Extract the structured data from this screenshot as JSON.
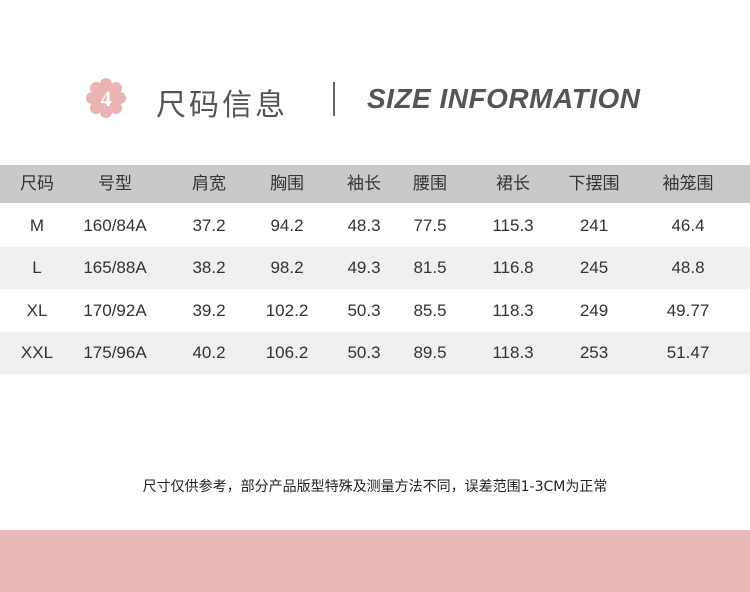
{
  "header": {
    "badge_number": "4",
    "title_cn": "尺码信息",
    "title_en": "SIZE INFORMATION"
  },
  "table": {
    "columns": [
      "尺码",
      "号型",
      "肩宽",
      "胸围",
      "袖长",
      "腰围",
      "裙长",
      "下摆围",
      "袖笼围"
    ],
    "rows": [
      [
        "M",
        "160/84A",
        "37.2",
        "94.2",
        "48.3",
        "77.5",
        "115.3",
        "241",
        "46.4"
      ],
      [
        "L",
        "165/88A",
        "38.2",
        "98.2",
        "49.3",
        "81.5",
        "116.8",
        "245",
        "48.8"
      ],
      [
        "XL",
        "170/92A",
        "39.2",
        "102.2",
        "50.3",
        "85.5",
        "118.3",
        "249",
        "49.77"
      ],
      [
        "XXL",
        "175/96A",
        "40.2",
        "106.2",
        "50.3",
        "89.5",
        "118.3",
        "253",
        "51.47"
      ]
    ]
  },
  "note": "尺寸仅供参考，部分产品版型特殊及测量方法不同，误差范围1-3CM为正常",
  "colors": {
    "accent": "#e8b8b8",
    "header_bg": "#c9c9c9",
    "stripe": "#f0f0f0"
  }
}
